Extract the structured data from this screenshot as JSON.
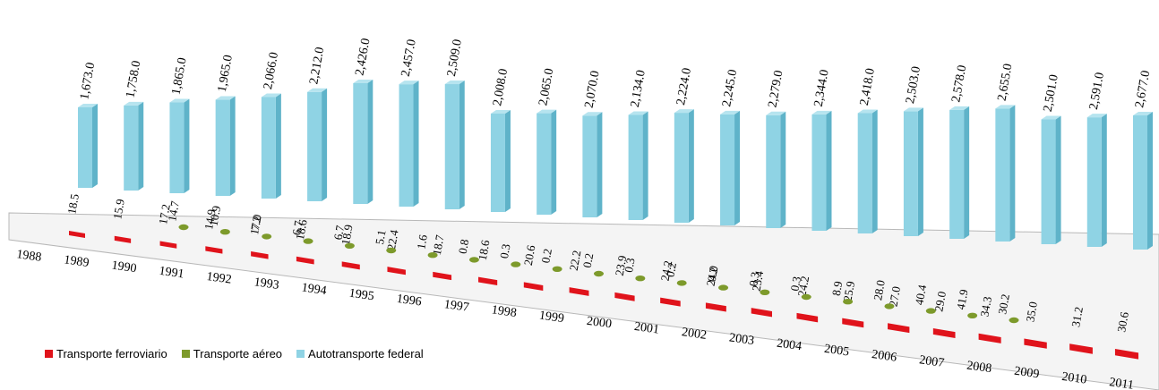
{
  "chart_data": {
    "type": "bar",
    "categories": [
      "1988",
      "1989",
      "1990",
      "1991",
      "1992",
      "1993",
      "1994",
      "1995",
      "1996",
      "1997",
      "1998",
      "1999",
      "2000",
      "2001",
      "2002",
      "2003",
      "2004",
      "2005",
      "2006",
      "2007",
      "2008",
      "2009",
      "2010",
      "2011"
    ],
    "series": [
      {
        "name": "Transporte ferroviario",
        "color": "#e0131b",
        "values": [
          18.5,
          15.9,
          17.2,
          14.9,
          17.0,
          18.6,
          18.9,
          22.4,
          18.7,
          18.6,
          20.6,
          22.2,
          23.9,
          24.2,
          24.0,
          23.4,
          24.2,
          25.9,
          27.0,
          29.0,
          34.3,
          35.0,
          31.2,
          30.6
        ],
        "labels": [
          "18.5",
          "15.9",
          "17.2",
          "14.9",
          "17.0",
          "18.6",
          "18.9",
          "22.4",
          "18.7",
          "18.6",
          "20.6",
          "22.2",
          "23.9",
          "24.2",
          "24.0",
          "23.4",
          "24.2",
          "25.9",
          "27.0",
          "29.0",
          "34.3",
          "35.0",
          "31.2",
          "30.6"
        ]
      },
      {
        "name": "Transporte aéreo",
        "color": "#7d9a2b",
        "values": [
          null,
          null,
          null,
          14.7,
          10.9,
          7.2,
          6.7,
          6.7,
          5.1,
          1.6,
          0.8,
          0.3,
          0.2,
          0.2,
          0.3,
          0.2,
          0.2,
          0.3,
          0.3,
          8.9,
          28.0,
          40.4,
          41.9,
          30.2
        ],
        "labels": [
          "",
          "",
          "",
          "14.7",
          "10.9",
          "7.2",
          "6.7",
          "6.7",
          "5.1",
          "1.6",
          "0.8",
          "0.3",
          "0.2",
          "0.2",
          "0.3",
          "0.2",
          "0.2",
          "0.3",
          "0.3",
          "8.9",
          "28.0",
          "40.4",
          "41.9",
          "30.2"
        ]
      },
      {
        "name": "Autotransporte federal",
        "color": "#8fd3e4",
        "values": [
          1673.0,
          1758.0,
          1865.0,
          1965.0,
          2066.0,
          2212.0,
          2426.0,
          2457.0,
          2509.0,
          2008.0,
          2065.0,
          2070.0,
          2134.0,
          2224.0,
          2245.0,
          2279.0,
          2344.0,
          2418.0,
          2503.0,
          2578.0,
          2655.0,
          2501.0,
          2591.0,
          2677.0
        ],
        "labels": [
          "1,673.0",
          "1,758.0",
          "1,865.0",
          "1,965.0",
          "2,066.0",
          "2,212.0",
          "2,426.0",
          "2,457.0",
          "2,509.0",
          "2,008.0",
          "2,065.0",
          "2,070.0",
          "2,134.0",
          "2,224.0",
          "2,245.0",
          "2,279.0",
          "2,344.0",
          "2,418.0",
          "2,503.0",
          "2,578.0",
          "2,655.0",
          "2,501.0",
          "2,591.0",
          "2,677.0"
        ]
      }
    ],
    "legend": [
      "Transporte ferroviario",
      "Transporte aéreo",
      "Autotransporte federal"
    ],
    "legend_position": "bottom-left",
    "view": "3d-perspective",
    "grid": false
  }
}
